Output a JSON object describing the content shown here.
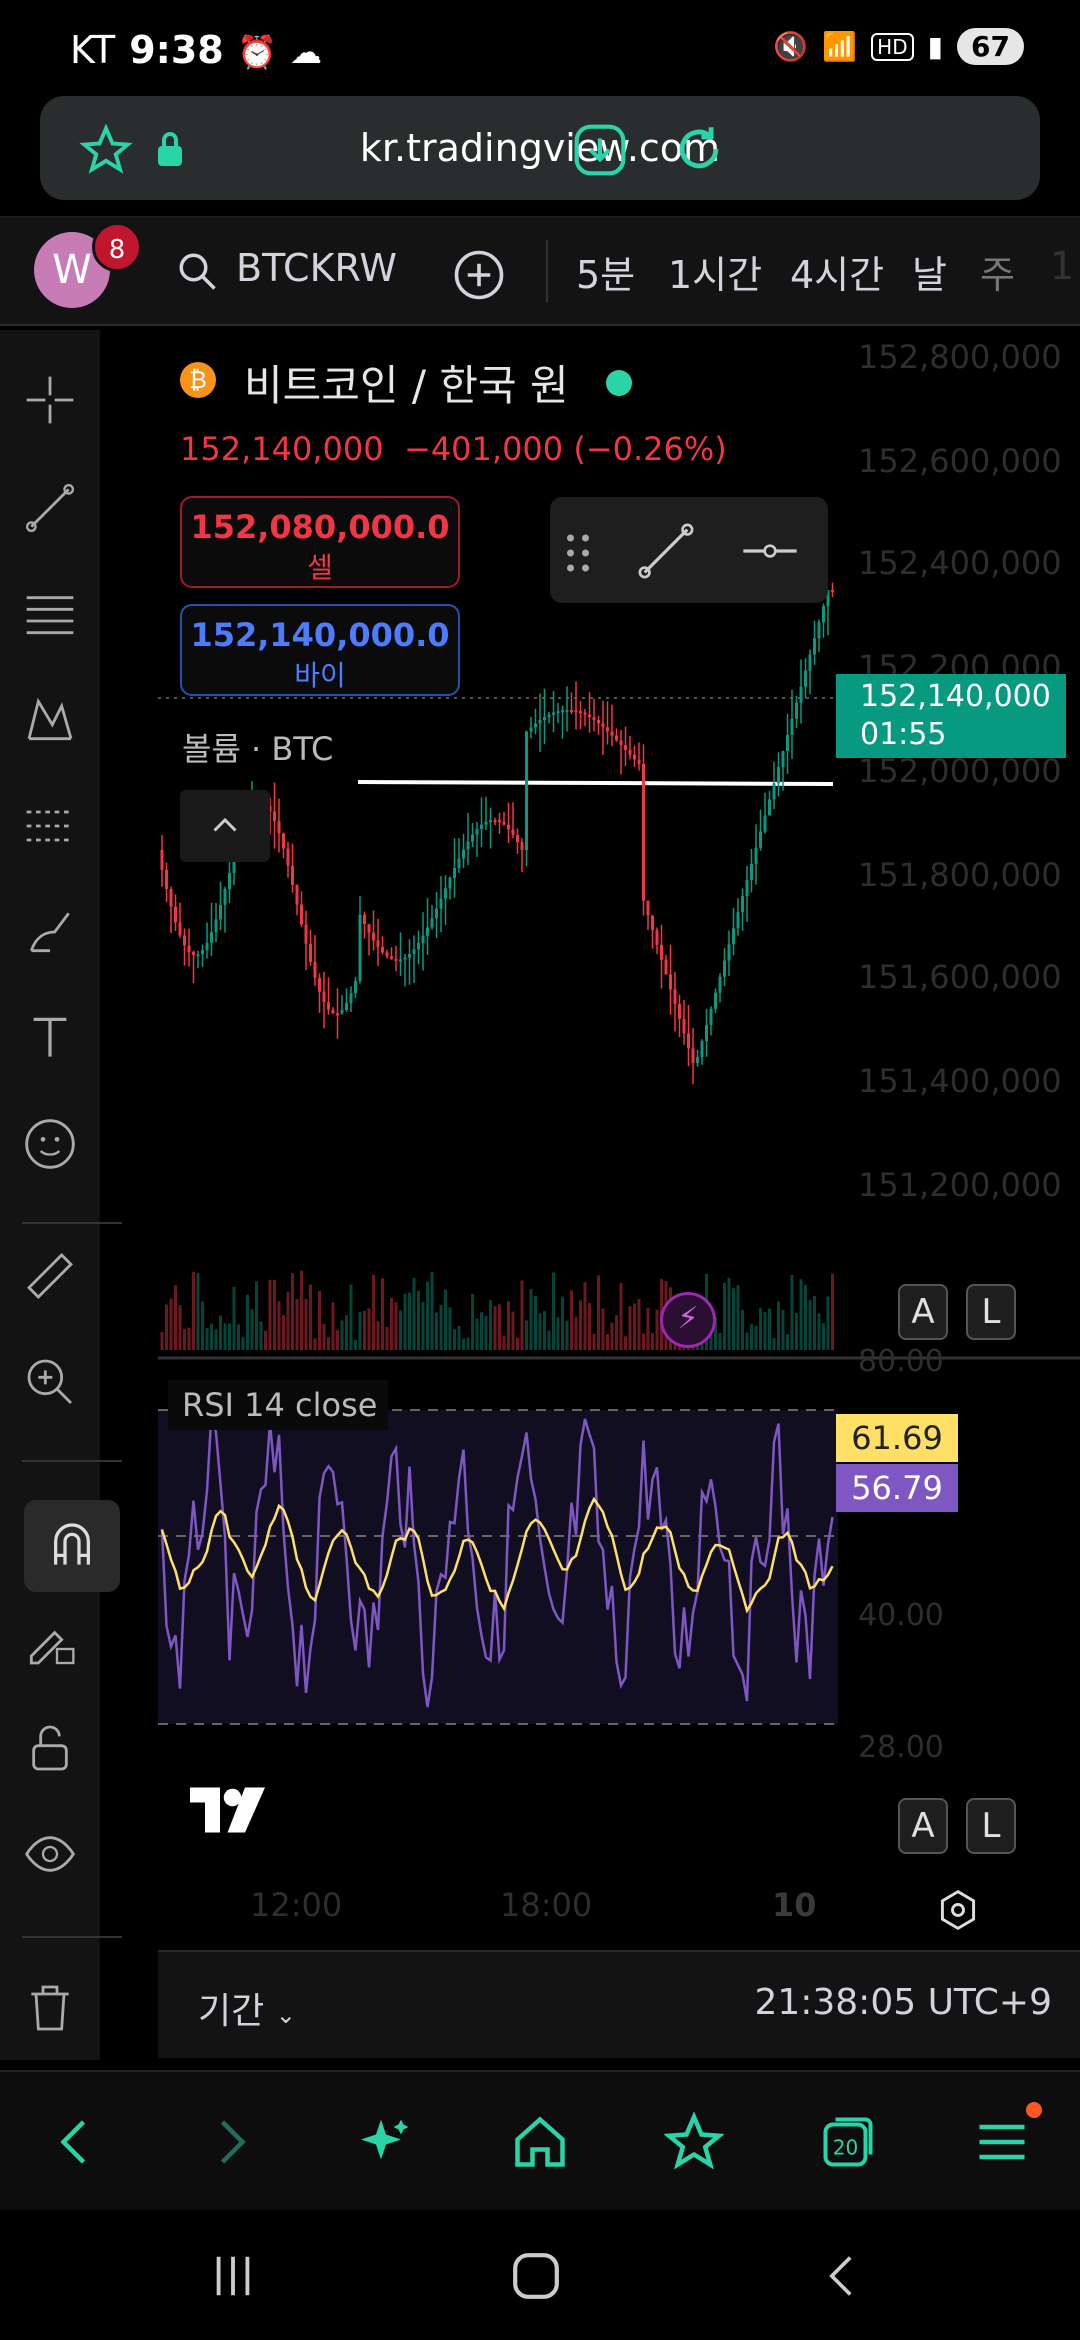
{
  "status_bar": {
    "carrier": "KT",
    "time": "9:38",
    "battery": "67"
  },
  "browser": {
    "url": "kr.tradingview.com"
  },
  "toolbar": {
    "avatar_letter": "W",
    "notification_count": "8",
    "symbol": "BTCKRW",
    "timeframes": [
      "5분",
      "1시간",
      "4시간",
      "날",
      "주",
      "1"
    ]
  },
  "chart": {
    "title": "비트코인 / 한국 원",
    "last_price": "152,140,000",
    "change": "−401,000 (−0.26%)",
    "sell": {
      "value": "152,080,000.0",
      "label": "셀"
    },
    "buy": {
      "value": "152,140,000.0",
      "label": "바이"
    },
    "volume_label": "볼륨 · BTC",
    "price_tag": {
      "price": "152,140,000",
      "countdown": "01:55"
    },
    "price_axis": [
      "152,800,000",
      "152,600,000",
      "152,400,000",
      "152,200,000",
      "152,000,000",
      "151,800,000",
      "151,600,000",
      "151,400,000",
      "151,200,000"
    ],
    "a_label": "A",
    "l_label": "L"
  },
  "rsi": {
    "label": "RSI 14 close",
    "value_ma": "61.69",
    "value_rsi": "56.79",
    "axis": [
      "80.00",
      "40.00",
      "28.00"
    ]
  },
  "time_axis": [
    "12:00",
    "18:00",
    "10"
  ],
  "period_bar": {
    "period_label": "기간",
    "clock": "21:38:05 UTC+9"
  },
  "colors": {
    "up": "#089981",
    "down": "#f23645",
    "accent": "#2ad3a8",
    "rsi_line": "#7e57c2",
    "rsi_ma": "#ffe066"
  }
}
